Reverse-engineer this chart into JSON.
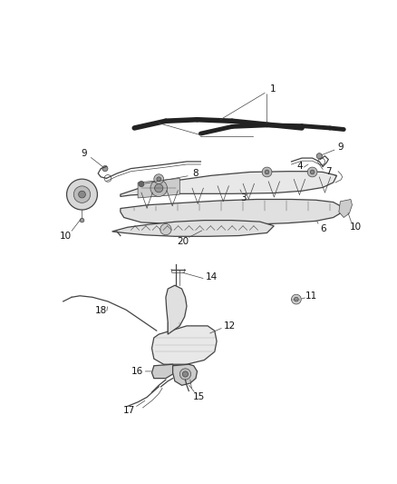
{
  "background_color": "#ffffff",
  "line_color": "#444444",
  "label_color": "#111111",
  "font_size": 7.5,
  "lw_thin": 0.5,
  "lw_med": 0.9,
  "lw_thick": 1.5
}
